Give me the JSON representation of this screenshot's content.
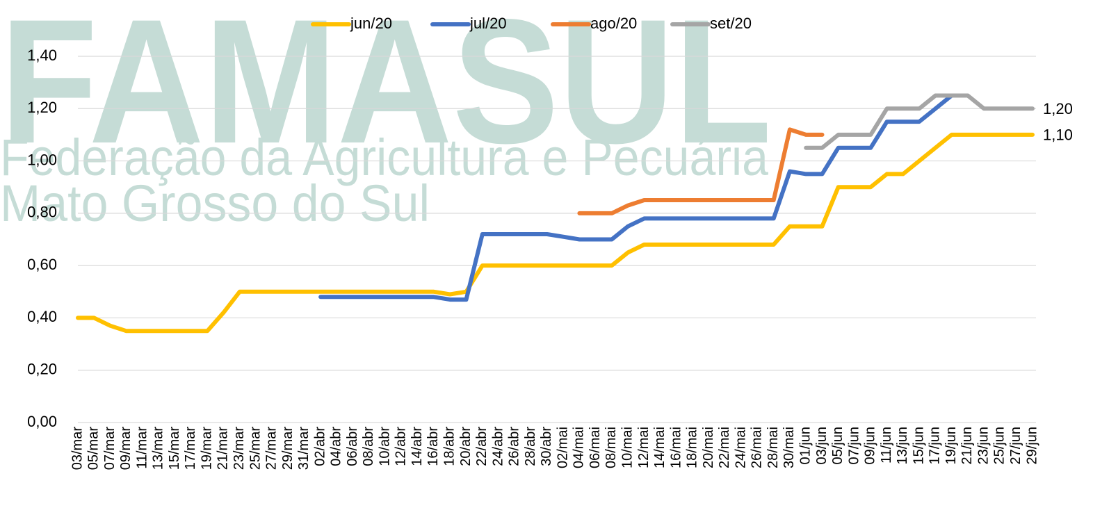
{
  "chart_data": {
    "type": "line",
    "watermark": [
      "FAMASUL",
      "Federação da Agricultura e Pecuária",
      "Mato Grosso do Sul"
    ],
    "categories": [
      "03/mar",
      "05/mar",
      "07/mar",
      "09/mar",
      "11/mar",
      "13/mar",
      "15/mar",
      "17/mar",
      "19/mar",
      "21/mar",
      "23/mar",
      "25/mar",
      "27/mar",
      "29/mar",
      "31/mar",
      "02/abr",
      "04/abr",
      "06/abr",
      "08/abr",
      "10/abr",
      "12/abr",
      "14/abr",
      "16/abr",
      "18/abr",
      "20/abr",
      "22/abr",
      "24/abr",
      "26/abr",
      "28/abr",
      "30/abr",
      "02/mai",
      "04/mai",
      "06/mai",
      "08/mai",
      "10/mai",
      "12/mai",
      "14/mai",
      "16/mai",
      "18/mai",
      "20/mai",
      "22/mai",
      "24/mai",
      "26/mai",
      "28/mai",
      "30/mai",
      "01/jun",
      "03/jun",
      "05/jun",
      "07/jun",
      "09/jun",
      "11/jun",
      "13/jun",
      "15/jun",
      "17/jun",
      "19/jun",
      "21/jun",
      "23/jun",
      "25/jun",
      "27/jun",
      "29/jun"
    ],
    "series": [
      {
        "name": "jun/20",
        "color": "#FFC000",
        "values": [
          0.4,
          0.4,
          0.37,
          0.35,
          0.35,
          0.35,
          0.35,
          0.35,
          0.35,
          0.42,
          0.5,
          0.5,
          0.5,
          0.5,
          0.5,
          0.5,
          0.5,
          0.5,
          0.5,
          0.5,
          0.5,
          0.5,
          0.5,
          0.49,
          0.5,
          0.6,
          0.6,
          0.6,
          0.6,
          0.6,
          0.6,
          0.6,
          0.6,
          0.6,
          0.65,
          0.68,
          0.68,
          0.68,
          0.68,
          0.68,
          0.68,
          0.68,
          0.68,
          0.68,
          0.75,
          0.75,
          0.75,
          0.9,
          0.9,
          0.9,
          0.95,
          0.95,
          1.0,
          1.05,
          1.1,
          1.1,
          1.1,
          1.1,
          1.1,
          1.1
        ],
        "value_labels": [
          null,
          null,
          null,
          null,
          null,
          null,
          null,
          null,
          null,
          null,
          null,
          null,
          null,
          null,
          null,
          null,
          null,
          null,
          null,
          null,
          null,
          null,
          null,
          null,
          null,
          null,
          null,
          null,
          null,
          null,
          null,
          null,
          null,
          null,
          null,
          null,
          null,
          null,
          null,
          null,
          null,
          null,
          null,
          null,
          null,
          null,
          null,
          null,
          null,
          null,
          null,
          null,
          null,
          null,
          null,
          null,
          null,
          null,
          null,
          "1,10"
        ]
      },
      {
        "name": "jul/20",
        "color": "#4472C4",
        "values": [
          null,
          null,
          null,
          null,
          null,
          null,
          null,
          null,
          null,
          null,
          null,
          null,
          null,
          null,
          null,
          0.48,
          0.48,
          0.48,
          0.48,
          0.48,
          0.48,
          0.48,
          0.48,
          0.47,
          0.47,
          0.72,
          0.72,
          0.72,
          0.72,
          0.72,
          0.71,
          0.7,
          0.7,
          0.7,
          0.75,
          0.78,
          0.78,
          0.78,
          0.78,
          0.78,
          0.78,
          0.78,
          0.78,
          0.78,
          0.96,
          0.95,
          0.95,
          1.05,
          1.05,
          1.05,
          1.15,
          1.15,
          1.15,
          1.2,
          1.25,
          null,
          null,
          null,
          null,
          null
        ]
      },
      {
        "name": "ago/20",
        "color": "#ED7D31",
        "values": [
          null,
          null,
          null,
          null,
          null,
          null,
          null,
          null,
          null,
          null,
          null,
          null,
          null,
          null,
          null,
          null,
          null,
          null,
          null,
          null,
          null,
          null,
          null,
          null,
          null,
          null,
          null,
          null,
          null,
          null,
          null,
          0.8,
          0.8,
          0.8,
          0.83,
          0.85,
          0.85,
          0.85,
          0.85,
          0.85,
          0.85,
          0.85,
          0.85,
          0.85,
          1.12,
          1.1,
          1.1,
          null,
          null,
          null,
          null,
          null,
          null,
          null,
          null,
          null,
          null,
          null,
          null,
          null
        ]
      },
      {
        "name": "set/20",
        "color": "#A5A5A5",
        "values": [
          null,
          null,
          null,
          null,
          null,
          null,
          null,
          null,
          null,
          null,
          null,
          null,
          null,
          null,
          null,
          null,
          null,
          null,
          null,
          null,
          null,
          null,
          null,
          null,
          null,
          null,
          null,
          null,
          null,
          null,
          null,
          null,
          null,
          null,
          null,
          null,
          null,
          null,
          null,
          null,
          null,
          null,
          null,
          null,
          null,
          1.05,
          1.05,
          1.1,
          1.1,
          1.1,
          1.2,
          1.2,
          1.2,
          1.25,
          1.25,
          1.25,
          1.2,
          1.2,
          1.2,
          1.2
        ],
        "value_labels": [
          null,
          null,
          null,
          null,
          null,
          null,
          null,
          null,
          null,
          null,
          null,
          null,
          null,
          null,
          null,
          null,
          null,
          null,
          null,
          null,
          null,
          null,
          null,
          null,
          null,
          null,
          null,
          null,
          null,
          null,
          null,
          null,
          null,
          null,
          null,
          null,
          null,
          null,
          null,
          null,
          null,
          null,
          null,
          null,
          null,
          null,
          null,
          null,
          null,
          null,
          null,
          null,
          null,
          null,
          null,
          null,
          null,
          null,
          null,
          "1,20"
        ]
      }
    ],
    "ylim": [
      0,
      1.4
    ],
    "yticks": [
      {
        "value": 0,
        "label": "0,00"
      },
      {
        "value": 0.2,
        "label": "0,20"
      },
      {
        "value": 0.4,
        "label": "0,40"
      },
      {
        "value": 0.6,
        "label": "0,60"
      },
      {
        "value": 0.8,
        "label": "0,80"
      },
      {
        "value": 1.0,
        "label": "1,00"
      },
      {
        "value": 1.2,
        "label": "1,20"
      },
      {
        "value": 1.4,
        "label": "1,40"
      }
    ],
    "grid": true,
    "legend": "top"
  }
}
